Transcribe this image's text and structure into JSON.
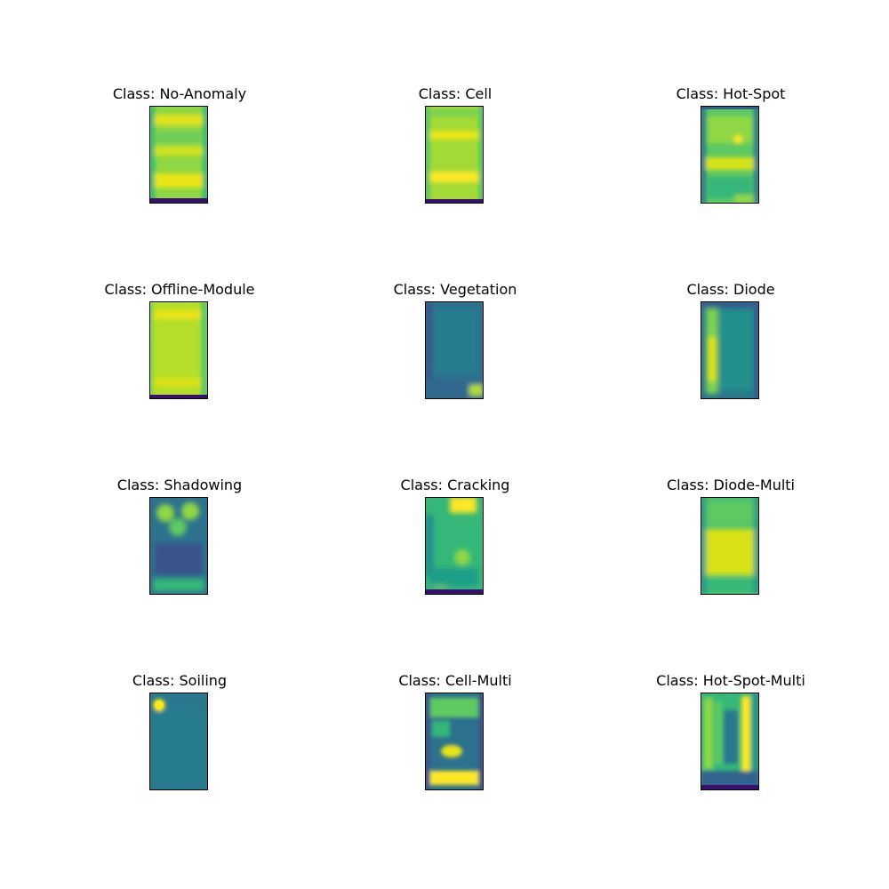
{
  "figure": {
    "panels": [
      {
        "title": "Class: No-Anomaly",
        "pattern": "no-anomaly"
      },
      {
        "title": "Class: Cell",
        "pattern": "cell"
      },
      {
        "title": "Class: Hot-Spot",
        "pattern": "hot-spot"
      },
      {
        "title": "Class: Offline-Module",
        "pattern": "offline-module"
      },
      {
        "title": "Class: Vegetation",
        "pattern": "vegetation"
      },
      {
        "title": "Class: Diode",
        "pattern": "diode"
      },
      {
        "title": "Class: Shadowing",
        "pattern": "shadowing"
      },
      {
        "title": "Class: Cracking",
        "pattern": "cracking"
      },
      {
        "title": "Class: Diode-Multi",
        "pattern": "diode-multi"
      },
      {
        "title": "Class: Soiling",
        "pattern": "soiling"
      },
      {
        "title": "Class: Cell-Multi",
        "pattern": "cell-multi"
      },
      {
        "title": "Class: Hot-Spot-Multi",
        "pattern": "hot-spot-multi"
      }
    ],
    "colormap": {
      "dark": "#3b0f70",
      "deep": "#31688e",
      "mid": "#21918c",
      "green": "#5ec962",
      "lime": "#b5de2b",
      "yellow": "#fde725"
    }
  }
}
